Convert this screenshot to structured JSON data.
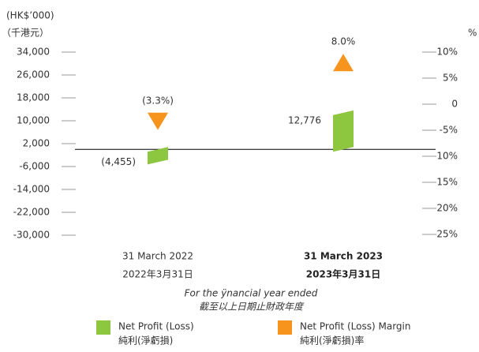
{
  "chart_data": {
    "type": "bar",
    "y_unit": "(HK$’000)",
    "y_unit_zh": "（千港元）",
    "y2_unit": "%",
    "categories": [
      "31 March 2022",
      "31 March 2023"
    ],
    "categories_zh": [
      "2022年3月31日",
      "2023年3月31日"
    ],
    "x_label": "For the ÿnancial year ended",
    "x_label_zh": "截至以上日期止財政年度",
    "series": [
      {
        "name": "Net Profit (Loss)",
        "name_zh": "純利(淨虧損)",
        "color": "#8dc63f",
        "values": [
          -4455,
          12776
        ],
        "value_labels": [
          "(4,455)",
          "12,776"
        ]
      },
      {
        "name": "Net Profit (Loss) Margin",
        "name_zh": "純利(淨虧損)率",
        "color": "#f7941d",
        "axis": "y2",
        "values": [
          -3.3,
          8.0
        ],
        "value_labels": [
          "(3.3%)",
          "8.0%"
        ]
      }
    ],
    "ylim": [
      -30000,
      34000
    ],
    "yticks": [
      {
        "value": 34000,
        "label": "34,000"
      },
      {
        "value": 26000,
        "label": "26,000"
      },
      {
        "value": 18000,
        "label": "18,000"
      },
      {
        "value": 10000,
        "label": "10,000"
      },
      {
        "value": 2000,
        "label": "2,000"
      },
      {
        "value": -6000,
        "label": "-6,000"
      },
      {
        "value": -14000,
        "label": "-14,000"
      },
      {
        "value": -22000,
        "label": "-22,000"
      },
      {
        "value": -30000,
        "label": "-30,000"
      }
    ],
    "y2lim": [
      -25,
      10
    ],
    "y2ticks": [
      {
        "value": 10,
        "label": "10%"
      },
      {
        "value": 5,
        "label": "5%"
      },
      0,
      {
        "value": -5,
        "label": "-5%"
      },
      {
        "value": -10,
        "label": "-10%"
      },
      {
        "value": -15,
        "label": "-15%"
      },
      {
        "value": -20,
        "label": "-20%"
      },
      {
        "value": -25,
        "label": "-25%"
      }
    ]
  }
}
